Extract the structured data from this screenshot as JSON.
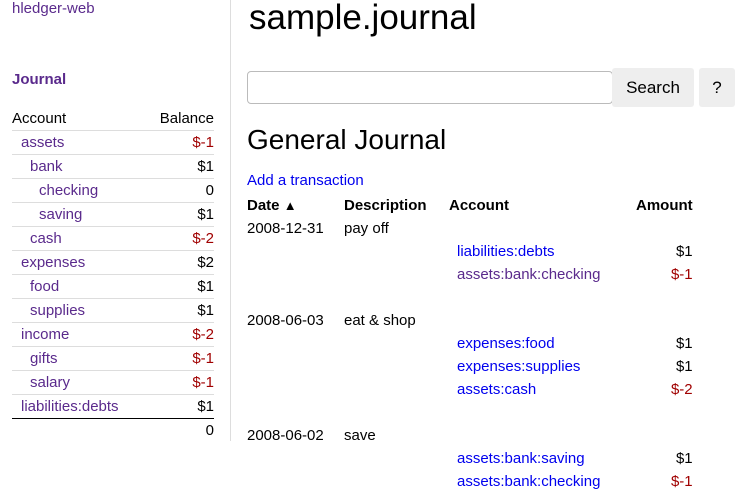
{
  "sidebar": {
    "brand": "hledger-web",
    "journal_link": "Journal",
    "headers": {
      "account": "Account",
      "balance": "Balance"
    },
    "accounts": [
      {
        "name": "assets",
        "balance": "$-1",
        "indent": 0,
        "negative": true
      },
      {
        "name": "bank",
        "balance": "$1",
        "indent": 1,
        "negative": false
      },
      {
        "name": "checking",
        "balance": "0",
        "indent": 2,
        "negative": false
      },
      {
        "name": "saving",
        "balance": "$1",
        "indent": 2,
        "negative": false
      },
      {
        "name": "cash",
        "balance": "$-2",
        "indent": 1,
        "negative": true
      },
      {
        "name": "expenses",
        "balance": "$2",
        "indent": 0,
        "negative": false
      },
      {
        "name": "food",
        "balance": "$1",
        "indent": 1,
        "negative": false
      },
      {
        "name": "supplies",
        "balance": "$1",
        "indent": 1,
        "negative": false
      },
      {
        "name": "income",
        "balance": "$-2",
        "indent": 0,
        "negative": true
      },
      {
        "name": "gifts",
        "balance": "$-1",
        "indent": 1,
        "negative": true
      },
      {
        "name": "salary",
        "balance": "$-1",
        "indent": 1,
        "negative": true
      },
      {
        "name": "liabilities:debts",
        "balance": "$1",
        "indent": 0,
        "negative": false
      }
    ],
    "total": "0"
  },
  "main": {
    "title": "sample.journal",
    "search": {
      "value": "",
      "placeholder": ""
    },
    "search_label": "Search",
    "help_label": "?",
    "heading": "General Journal",
    "add_label": "Add a transaction",
    "columns": {
      "date": "Date",
      "sort_icon": "chevron-up-icon",
      "description": "Description",
      "account": "Account",
      "amount": "Amount"
    },
    "transactions": [
      {
        "date": "2008-12-31",
        "description": "pay off",
        "postings": [
          {
            "account": "liabilities:debts",
            "amount": "$1",
            "negative": false,
            "visited": false
          },
          {
            "account": "assets:bank:checking",
            "amount": "$-1",
            "negative": true,
            "visited": true
          }
        ]
      },
      {
        "date": "2008-06-03",
        "description": "eat & shop",
        "postings": [
          {
            "account": "expenses:food",
            "amount": "$1",
            "negative": false,
            "visited": false
          },
          {
            "account": "expenses:supplies",
            "amount": "$1",
            "negative": false,
            "visited": false
          },
          {
            "account": "assets:cash",
            "amount": "$-2",
            "negative": true,
            "visited": false
          }
        ]
      },
      {
        "date": "2008-06-02",
        "description": "save",
        "postings": [
          {
            "account": "assets:bank:saving",
            "amount": "$1",
            "negative": false,
            "visited": false
          },
          {
            "account": "assets:bank:checking",
            "amount": "$-1",
            "negative": true,
            "visited": false
          }
        ]
      }
    ]
  },
  "colors": {
    "link": "#0000ee",
    "visited": "#5a2a8c",
    "negative": "#a00000"
  }
}
